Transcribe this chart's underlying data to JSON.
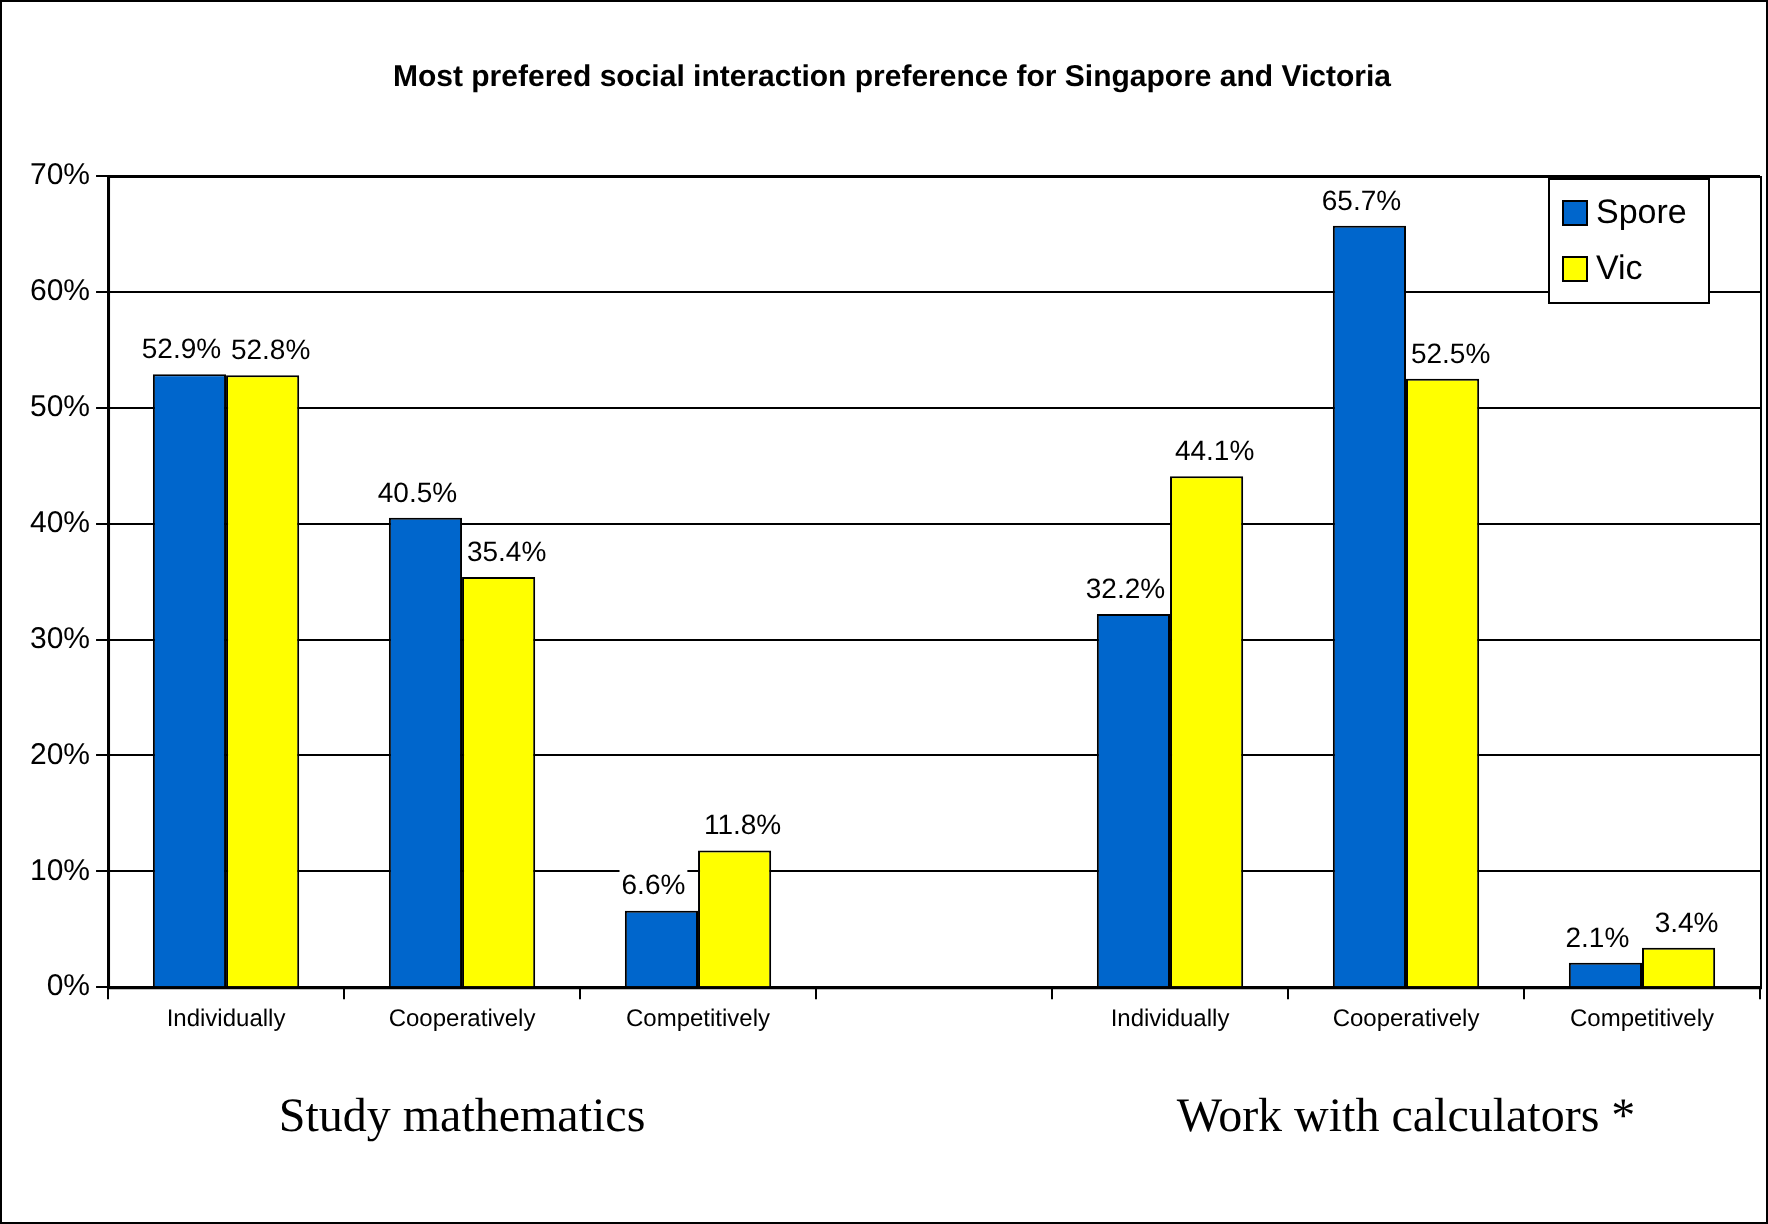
{
  "chart_data": {
    "type": "bar",
    "title": "Most prefered social interaction preference for Singapore and Victoria",
    "categories": [
      "Individually",
      "Cooperatively",
      "Competitively",
      null,
      "Individually",
      "Cooperatively",
      "Competitively"
    ],
    "series": [
      {
        "name": "Spore",
        "color": "#0066cc",
        "values": [
          52.9,
          40.5,
          6.6,
          null,
          32.2,
          65.7,
          2.1
        ],
        "value_labels": [
          "52.9%",
          "40.5%",
          "6.6%",
          null,
          "32.2%",
          "65.7%",
          "2.1%"
        ]
      },
      {
        "name": "Vic",
        "color": "#ffff00",
        "values": [
          52.8,
          35.4,
          11.8,
          null,
          44.1,
          52.5,
          3.4
        ],
        "value_labels": [
          "52.8%",
          "35.4%",
          "11.8%",
          null,
          "44.1%",
          "52.5%",
          "3.4%"
        ]
      }
    ],
    "ylim": [
      0,
      70
    ],
    "yticks": [
      {
        "value": 0,
        "label": "0%"
      },
      {
        "value": 10,
        "label": "10%"
      },
      {
        "value": 20,
        "label": "20%"
      },
      {
        "value": 30,
        "label": "30%"
      },
      {
        "value": 40,
        "label": "40%"
      },
      {
        "value": 50,
        "label": "50%"
      },
      {
        "value": 60,
        "label": "60%"
      },
      {
        "value": 70,
        "label": "70%"
      }
    ],
    "grid": "y",
    "legend": "top right",
    "annotations": [
      "Study mathematics",
      "Work with calculators *"
    ]
  }
}
